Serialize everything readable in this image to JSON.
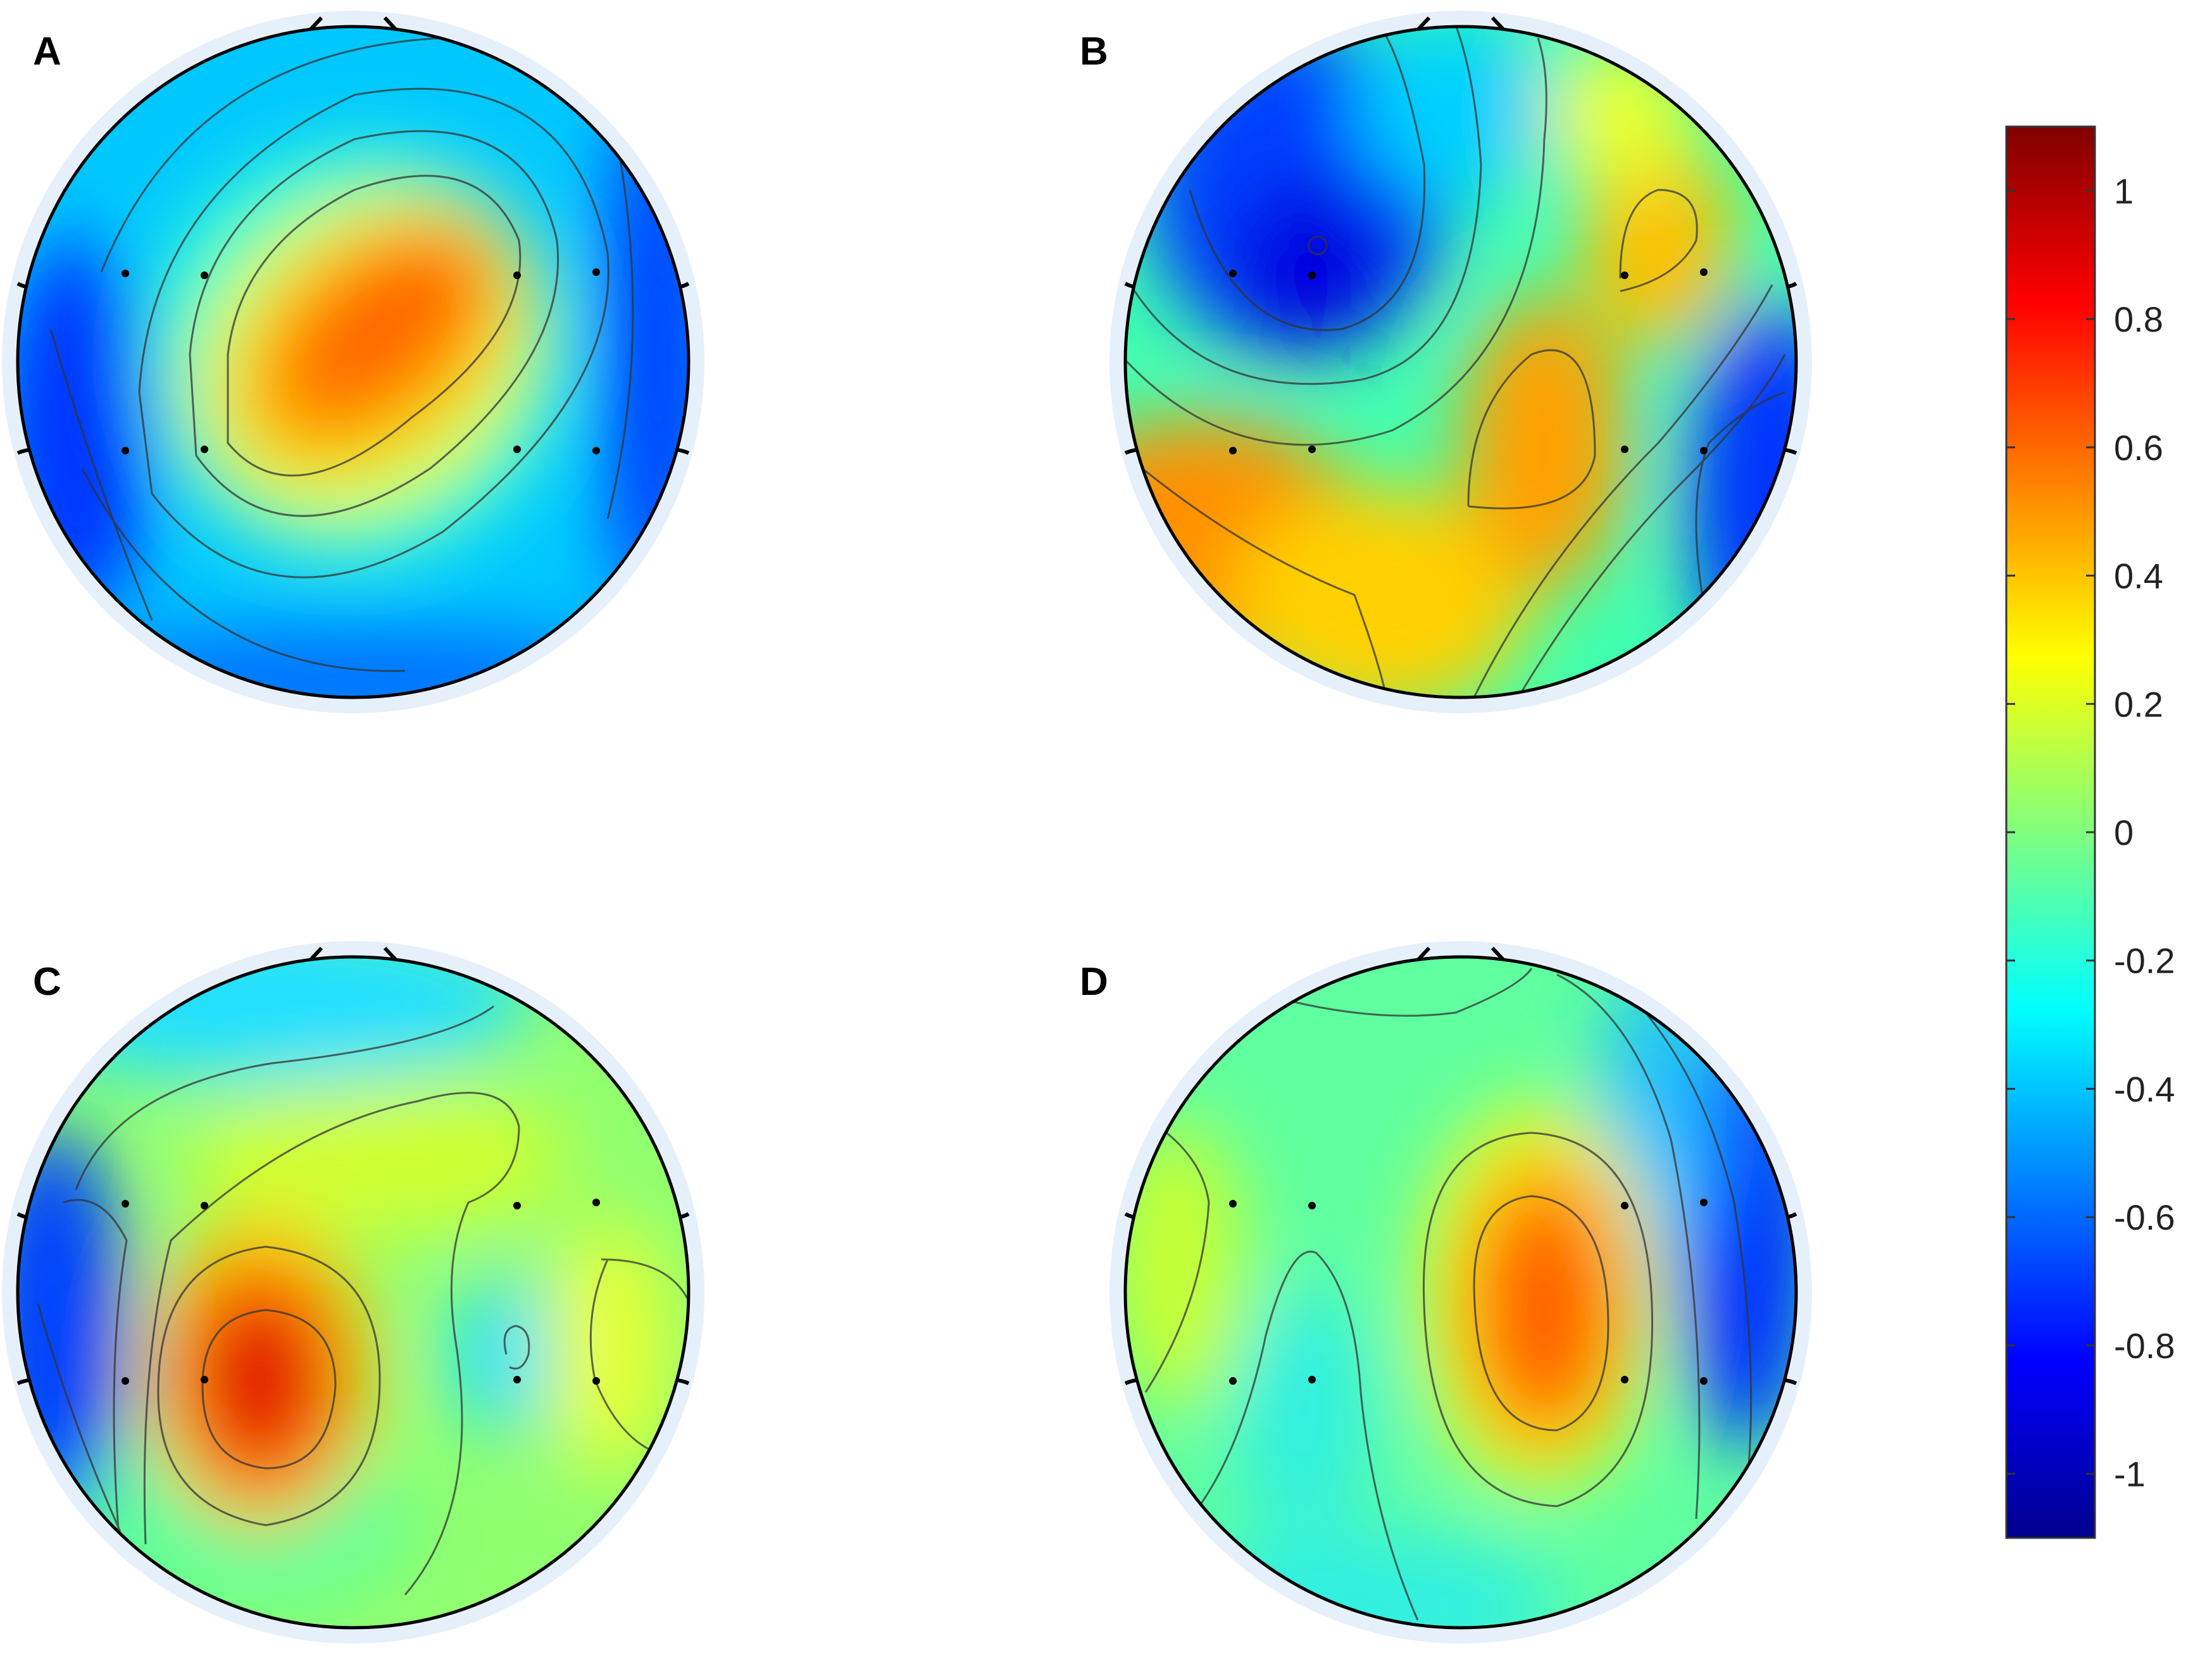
{
  "chart_data": {
    "type": "heatmap",
    "subtype": "scalp-topography",
    "title": "",
    "colormap": "jet",
    "contour_lines": true,
    "electrode_markers": true,
    "panels": [
      {
        "label": "A",
        "peak": {
          "value": 0.6,
          "location": "central-right"
        },
        "trough": {
          "value": -0.8,
          "location": "left and right edges"
        },
        "electrodes": 8
      },
      {
        "label": "B",
        "peak": {
          "value": 0.5,
          "location": "left-posterior and right-central"
        },
        "trough": {
          "value": -0.8,
          "location": "left-frontal"
        },
        "electrodes": 8
      },
      {
        "label": "C",
        "peak": {
          "value": 0.8,
          "location": "left-posterior"
        },
        "trough": {
          "value": -0.8,
          "location": "left edge"
        },
        "electrodes": 8
      },
      {
        "label": "D",
        "peak": {
          "value": 0.6,
          "location": "right-posterior"
        },
        "trough": {
          "value": -0.9,
          "location": "right edge"
        },
        "electrodes": 8
      }
    ],
    "colorbar": {
      "range": [
        -1.1,
        1.1
      ],
      "tick_values": [
        1,
        0.8,
        0.6,
        0.4,
        0.2,
        0,
        -0.2,
        -0.4,
        -0.6,
        -0.8,
        -1
      ],
      "tick_labels": [
        "1",
        "0.8",
        "0.6",
        "0.4",
        "0.2",
        "0",
        "-0.2",
        "-0.4",
        "-0.6",
        "-0.8",
        "-1"
      ],
      "colors": [
        "#00008f",
        "#0000ff",
        "#00ffff",
        "#ffff00",
        "#ff0000",
        "#800000"
      ]
    }
  }
}
